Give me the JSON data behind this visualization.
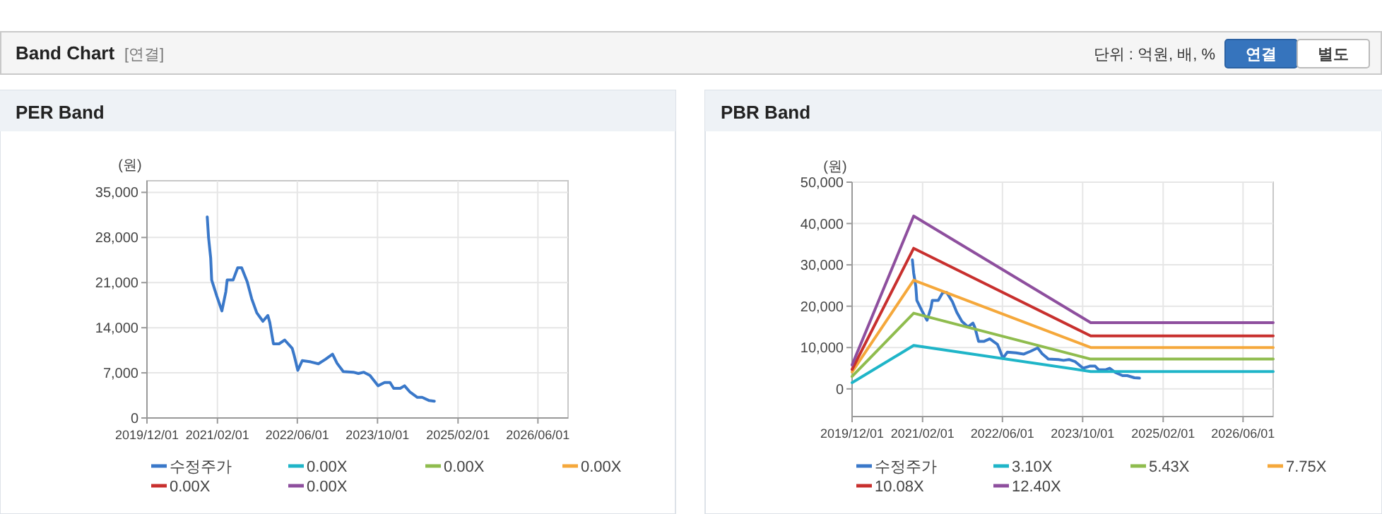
{
  "chart_data": [
    {
      "type": "line",
      "title": "PER Band",
      "ylabel": "(원)",
      "annotations": [
        "Band Chart",
        "[연결]",
        "단위 : 억원, 배, %",
        "연결",
        "별도"
      ],
      "xlim": [
        "2019-12-01",
        "2026-12-01"
      ],
      "ylim": [
        0,
        36800
      ],
      "xticks": [
        {
          "value": "2019-12-01",
          "label": "2019/12/01"
        },
        {
          "value": "2021-02-01",
          "label": "2021/02/01"
        },
        {
          "value": "2022-06-01",
          "label": "2022/06/01"
        },
        {
          "value": "2023-10-01",
          "label": "2023/10/01"
        },
        {
          "value": "2025-02-01",
          "label": "2025/02/01"
        },
        {
          "value": "2026-06-01",
          "label": "2026/06/01"
        }
      ],
      "yticks": [
        {
          "value": 0,
          "label": "0"
        },
        {
          "value": 7000,
          "label": "7,000"
        },
        {
          "value": 14000,
          "label": "14,000"
        },
        {
          "value": 21000,
          "label": "21,000"
        },
        {
          "value": 28000,
          "label": "28,000"
        },
        {
          "value": 35000,
          "label": "35,000"
        }
      ],
      "grid": true,
      "legend": "bottom",
      "series": [
        {
          "name": "수정주가",
          "color": "#3a78c9",
          "x": [
            "2020-12-01",
            "2020-12-09",
            "2020-12-22",
            "2020-12-28",
            "2021-01-28",
            "2021-02-28",
            "2021-03-24",
            "2021-04-01",
            "2021-05-07",
            "2021-06-04",
            "2021-06-28",
            "2021-08-01",
            "2021-08-28",
            "2021-09-28",
            "2021-11-04",
            "2021-12-04",
            "2021-12-16",
            "2022-01-07",
            "2022-02-10",
            "2022-03-16",
            "2022-05-01",
            "2022-05-13",
            "2022-06-04",
            "2022-07-01",
            "2022-08-22",
            "2022-10-07",
            "2022-11-19",
            "2023-01-01",
            "2023-01-28",
            "2023-03-07",
            "2023-05-07",
            "2023-06-07",
            "2023-07-10",
            "2023-08-16",
            "2023-10-04",
            "2023-11-13",
            "2023-12-16",
            "2024-01-07",
            "2024-02-16",
            "2024-03-13",
            "2024-04-16",
            "2024-05-30",
            "2024-06-28",
            "2024-08-10",
            "2024-09-10"
          ],
          "values": [
            31200,
            28000,
            24800,
            21400,
            18900,
            16600,
            19600,
            21400,
            21400,
            23300,
            23300,
            21100,
            18500,
            16300,
            15000,
            15900,
            14800,
            11500,
            11500,
            12100,
            10800,
            9700,
            7400,
            8900,
            8700,
            8400,
            9100,
            9900,
            8500,
            7200,
            7100,
            6900,
            7100,
            6600,
            5000,
            5500,
            5500,
            4600,
            4600,
            5000,
            4000,
            3200,
            3200,
            2700,
            2600
          ]
        },
        {
          "name": "0.00X",
          "color": "#1fb5c8"
        },
        {
          "name": "0.00X",
          "color": "#8fbc4e"
        },
        {
          "name": "0.00X",
          "color": "#f5a83b"
        },
        {
          "name": "0.00X",
          "color": "#c8302e"
        },
        {
          "name": "0.00X",
          "color": "#8e4f9e"
        }
      ]
    },
    {
      "type": "line",
      "title": "PBR Band",
      "ylabel": "(원)",
      "xlim": [
        "2019-12-01",
        "2026-12-01"
      ],
      "ylim": [
        -6700,
        50000
      ],
      "xticks": [
        {
          "value": "2019-12-01",
          "label": "2019/12/01"
        },
        {
          "value": "2021-02-01",
          "label": "2021/02/01"
        },
        {
          "value": "2022-06-01",
          "label": "2022/06/01"
        },
        {
          "value": "2023-10-01",
          "label": "2023/10/01"
        },
        {
          "value": "2025-02-01",
          "label": "2025/02/01"
        },
        {
          "value": "2026-06-01",
          "label": "2026/06/01"
        }
      ],
      "yticks": [
        {
          "value": 0,
          "label": "0"
        },
        {
          "value": 10000,
          "label": "10,000"
        },
        {
          "value": 20000,
          "label": "20,000"
        },
        {
          "value": 30000,
          "label": "30,000"
        },
        {
          "value": 40000,
          "label": "40,000"
        },
        {
          "value": 50000,
          "label": "50,000"
        }
      ],
      "grid": true,
      "legend": "bottom",
      "series": [
        {
          "name": "수정주가",
          "color": "#3a78c9",
          "x": [
            "2020-12-01",
            "2020-12-09",
            "2020-12-22",
            "2020-12-28",
            "2021-01-28",
            "2021-02-28",
            "2021-03-24",
            "2021-04-01",
            "2021-05-07",
            "2021-06-04",
            "2021-06-28",
            "2021-08-01",
            "2021-08-28",
            "2021-09-28",
            "2021-11-04",
            "2021-12-04",
            "2021-12-16",
            "2022-01-07",
            "2022-02-10",
            "2022-03-16",
            "2022-05-01",
            "2022-05-13",
            "2022-06-04",
            "2022-07-01",
            "2022-08-22",
            "2022-10-07",
            "2022-11-19",
            "2023-01-01",
            "2023-01-28",
            "2023-03-07",
            "2023-05-07",
            "2023-06-07",
            "2023-07-10",
            "2023-08-16",
            "2023-10-04",
            "2023-11-13",
            "2023-12-16",
            "2024-01-07",
            "2024-02-16",
            "2024-03-13",
            "2024-04-16",
            "2024-05-30",
            "2024-06-28",
            "2024-08-10",
            "2024-09-10"
          ],
          "values": [
            31200,
            28000,
            24800,
            21400,
            18900,
            16600,
            19600,
            21400,
            21400,
            23300,
            23300,
            21100,
            18500,
            16300,
            15000,
            15900,
            14800,
            11500,
            11500,
            12100,
            10800,
            9700,
            7400,
            8900,
            8700,
            8400,
            9100,
            9900,
            8500,
            7200,
            7100,
            6900,
            7100,
            6600,
            5000,
            5500,
            5500,
            4600,
            4600,
            5000,
            4000,
            3200,
            3200,
            2700,
            2600
          ]
        },
        {
          "name": "3.10X",
          "color": "#1fb5c8",
          "x": [
            "2019-12-01",
            "2020-12-09",
            "2023-11-19",
            "2026-12-01"
          ],
          "values": [
            1500,
            10500,
            4200,
            4200
          ]
        },
        {
          "name": "5.43X",
          "color": "#8fbc4e",
          "x": [
            "2019-12-01",
            "2020-12-09",
            "2023-11-19",
            "2026-12-01"
          ],
          "values": [
            3000,
            18300,
            7200,
            7200
          ]
        },
        {
          "name": "7.75X",
          "color": "#f5a83b",
          "x": [
            "2019-12-01",
            "2020-12-09",
            "2023-11-19",
            "2026-12-01"
          ],
          "values": [
            4100,
            26300,
            10000,
            10000
          ]
        },
        {
          "name": "10.08X",
          "color": "#c8302e",
          "x": [
            "2019-12-01",
            "2020-12-09",
            "2023-11-19",
            "2026-12-01"
          ],
          "values": [
            4700,
            34000,
            12800,
            12800
          ]
        },
        {
          "name": "12.40X",
          "color": "#8e4f9e",
          "x": [
            "2019-12-01",
            "2020-12-09",
            "2023-11-19",
            "2026-12-01"
          ],
          "values": [
            5800,
            41800,
            16000,
            16000
          ]
        }
      ]
    }
  ]
}
